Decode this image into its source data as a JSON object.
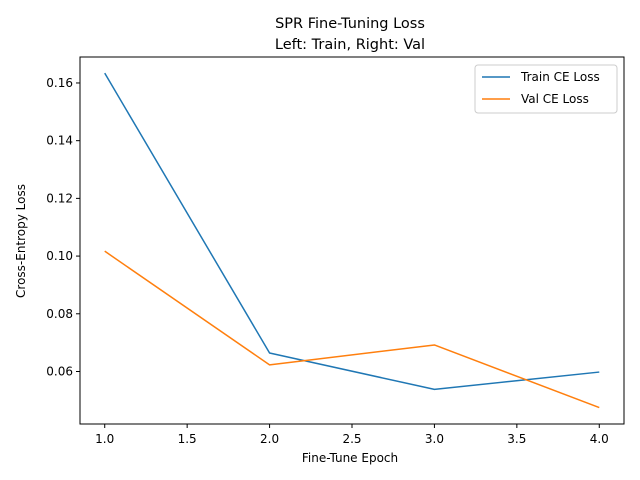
{
  "chart_data": {
    "type": "line",
    "title_line1": "SPR Fine-Tuning Loss",
    "title_line2": "Left: Train, Right: Val",
    "xlabel": "Fine-Tune Epoch",
    "ylabel": "Cross-Entropy Loss",
    "x": [
      1.0,
      2.0,
      3.0,
      4.0
    ],
    "xlim": [
      0.85,
      4.15
    ],
    "ylim": [
      0.0418,
      0.169
    ],
    "xticks": [
      "1.0",
      "1.5",
      "2.0",
      "2.5",
      "3.0",
      "3.5",
      "4.0"
    ],
    "xtick_values": [
      1.0,
      1.5,
      2.0,
      2.5,
      3.0,
      3.5,
      4.0
    ],
    "yticks": [
      "0.06",
      "0.08",
      "0.10",
      "0.12",
      "0.14",
      "0.16"
    ],
    "ytick_values": [
      0.06,
      0.08,
      0.1,
      0.12,
      0.14,
      0.16
    ],
    "grid": false,
    "legend_position": "top-right",
    "series": [
      {
        "name": "Train CE Loss",
        "color": "#1f77b4",
        "values": [
          0.1634,
          0.0664,
          0.0538,
          0.0598
        ]
      },
      {
        "name": "Val CE Loss",
        "color": "#ff7f0e",
        "values": [
          0.1017,
          0.0623,
          0.0692,
          0.0475
        ]
      }
    ]
  }
}
